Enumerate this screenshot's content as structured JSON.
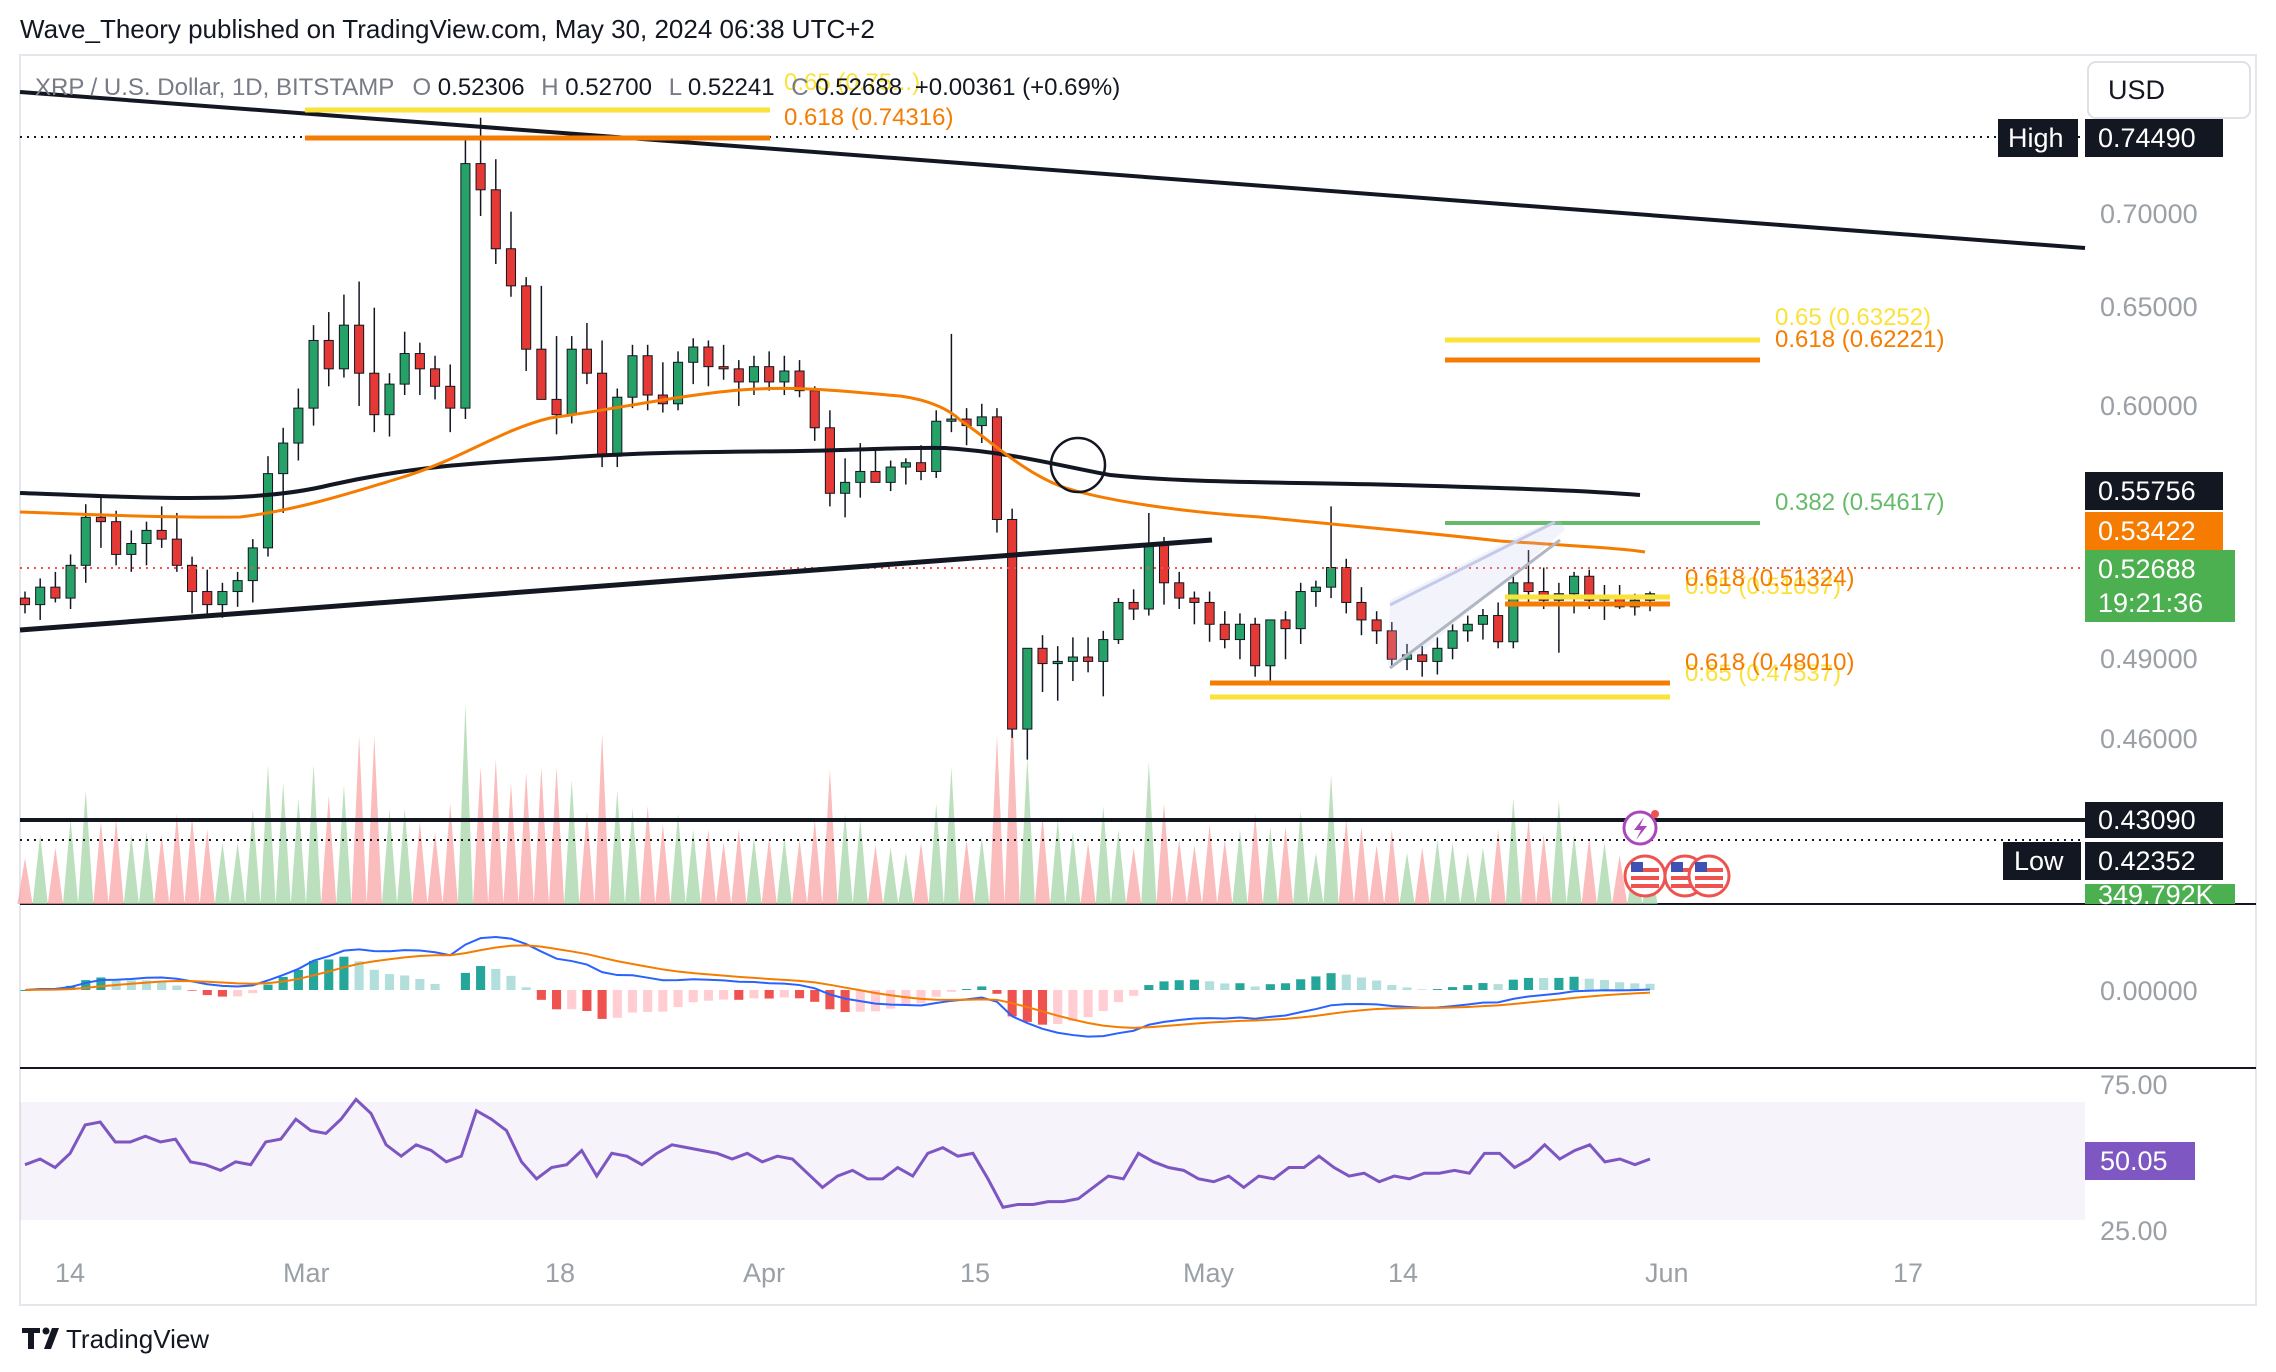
{
  "header": {
    "publisher": "Wave_Theory published on TradingView.com, May 30, 2024 06:38 UTC+2"
  },
  "currency_button": "USD",
  "legend": {
    "symbol": "XRP / U.S. Dollar, 1D, BITSTAMP",
    "o_label": "O",
    "o_value": "0.52306",
    "h_label": "H",
    "h_value": "0.52700",
    "l_label": "L",
    "l_value": "0.52241",
    "c_label": "C",
    "c_value": "0.52688",
    "change": "+0.00361 (+0.69%)"
  },
  "footer": {
    "brand": "TradingView"
  },
  "chart_data": [
    {
      "type": "candlestick",
      "panel": "price",
      "x_axis_labels": [
        "14",
        "Mar",
        "18",
        "Apr",
        "15",
        "May",
        "14",
        "Jun",
        "17"
      ],
      "y_axis_labels": [
        "0.70000",
        "0.65000",
        "0.60000",
        "0.49000",
        "0.46000"
      ],
      "price_tags": {
        "high_label": "High",
        "high_value": "0.74490",
        "ma200_value": "0.55756",
        "ma50_value": "0.53422",
        "last_value": "0.52688",
        "countdown": "19:21:36",
        "support_value": "0.43090",
        "low_label": "Low",
        "low_value": "0.42352",
        "volume_value": "349.792K"
      },
      "fib_labels": {
        "top_065": "0.65 (0.75...)",
        "top_0618": "0.618 (0.74316)",
        "r_065": "0.65 (0.63252)",
        "r_0618": "0.618 (0.62221)",
        "r_0382": "0.382 (0.54617)",
        "m_0618": "0.618 (0.51324)",
        "m_065": "0.65 (0.51037)",
        "s_0618": "0.618 (0.48010)",
        "s_065": "0.65 (0.47537)"
      },
      "candles_ohlc": [
        [
          0.525,
          0.528,
          0.518,
          0.522
        ],
        [
          0.522,
          0.534,
          0.515,
          0.53
        ],
        [
          0.53,
          0.537,
          0.523,
          0.525
        ],
        [
          0.525,
          0.545,
          0.52,
          0.54
        ],
        [
          0.54,
          0.568,
          0.532,
          0.562
        ],
        [
          0.562,
          0.572,
          0.548,
          0.56
        ],
        [
          0.56,
          0.565,
          0.54,
          0.545
        ],
        [
          0.545,
          0.556,
          0.537,
          0.55
        ],
        [
          0.55,
          0.56,
          0.54,
          0.556
        ],
        [
          0.556,
          0.567,
          0.548,
          0.552
        ],
        [
          0.552,
          0.564,
          0.537,
          0.54
        ],
        [
          0.54,
          0.544,
          0.518,
          0.528
        ],
        [
          0.528,
          0.538,
          0.517,
          0.522
        ],
        [
          0.522,
          0.532,
          0.516,
          0.528
        ],
        [
          0.528,
          0.537,
          0.521,
          0.533
        ],
        [
          0.533,
          0.552,
          0.523,
          0.548
        ],
        [
          0.548,
          0.59,
          0.544,
          0.582
        ],
        [
          0.582,
          0.603,
          0.564,
          0.596
        ],
        [
          0.596,
          0.621,
          0.588,
          0.612
        ],
        [
          0.612,
          0.65,
          0.604,
          0.643
        ],
        [
          0.643,
          0.656,
          0.622,
          0.63
        ],
        [
          0.63,
          0.664,
          0.626,
          0.65
        ],
        [
          0.65,
          0.67,
          0.613,
          0.628
        ],
        [
          0.628,
          0.658,
          0.601,
          0.609
        ],
        [
          0.609,
          0.628,
          0.599,
          0.623
        ],
        [
          0.623,
          0.647,
          0.618,
          0.637
        ],
        [
          0.637,
          0.642,
          0.618,
          0.63
        ],
        [
          0.63,
          0.636,
          0.616,
          0.622
        ],
        [
          0.622,
          0.632,
          0.601,
          0.612
        ],
        [
          0.612,
          0.736,
          0.607,
          0.724
        ],
        [
          0.724,
          0.745,
          0.7,
          0.712
        ],
        [
          0.712,
          0.726,
          0.678,
          0.685
        ],
        [
          0.685,
          0.702,
          0.663,
          0.668
        ],
        [
          0.668,
          0.672,
          0.629,
          0.639
        ],
        [
          0.639,
          0.668,
          0.623,
          0.616
        ],
        [
          0.616,
          0.645,
          0.6,
          0.609
        ],
        [
          0.609,
          0.645,
          0.605,
          0.639
        ],
        [
          0.639,
          0.651,
          0.623,
          0.628
        ],
        [
          0.628,
          0.643,
          0.585,
          0.59
        ],
        [
          0.59,
          0.621,
          0.585,
          0.617
        ],
        [
          0.617,
          0.641,
          0.612,
          0.636
        ],
        [
          0.636,
          0.641,
          0.611,
          0.618
        ],
        [
          0.618,
          0.633,
          0.61,
          0.614
        ],
        [
          0.614,
          0.638,
          0.611,
          0.633
        ],
        [
          0.633,
          0.644,
          0.623,
          0.64
        ],
        [
          0.64,
          0.643,
          0.622,
          0.631
        ],
        [
          0.631,
          0.641,
          0.625,
          0.63
        ],
        [
          0.63,
          0.634,
          0.613,
          0.624
        ],
        [
          0.624,
          0.636,
          0.618,
          0.631
        ],
        [
          0.631,
          0.638,
          0.62,
          0.624
        ],
        [
          0.624,
          0.636,
          0.618,
          0.629
        ],
        [
          0.629,
          0.634,
          0.617,
          0.62
        ],
        [
          0.62,
          0.622,
          0.597,
          0.603
        ],
        [
          0.603,
          0.611,
          0.567,
          0.573
        ],
        [
          0.573,
          0.589,
          0.562,
          0.578
        ],
        [
          0.578,
          0.596,
          0.571,
          0.583
        ],
        [
          0.583,
          0.593,
          0.578,
          0.578
        ],
        [
          0.578,
          0.588,
          0.574,
          0.585
        ],
        [
          0.585,
          0.589,
          0.577,
          0.587
        ],
        [
          0.587,
          0.595,
          0.579,
          0.583
        ],
        [
          0.583,
          0.611,
          0.58,
          0.606
        ],
        [
          0.606,
          0.646,
          0.601,
          0.607
        ],
        [
          0.607,
          0.612,
          0.595,
          0.604
        ],
        [
          0.604,
          0.614,
          0.596,
          0.608
        ],
        [
          0.608,
          0.612,
          0.555,
          0.561
        ],
        [
          0.561,
          0.566,
          0.461,
          0.465
        ],
        [
          0.465,
          0.5,
          0.451,
          0.502
        ],
        [
          0.502,
          0.508,
          0.482,
          0.495
        ],
        [
          0.495,
          0.503,
          0.478,
          0.496
        ],
        [
          0.496,
          0.507,
          0.487,
          0.498
        ],
        [
          0.498,
          0.507,
          0.491,
          0.496
        ],
        [
          0.496,
          0.51,
          0.48,
          0.506
        ],
        [
          0.506,
          0.525,
          0.504,
          0.523
        ],
        [
          0.523,
          0.529,
          0.515,
          0.52
        ],
        [
          0.52,
          0.564,
          0.517,
          0.55
        ],
        [
          0.55,
          0.553,
          0.522,
          0.532
        ],
        [
          0.532,
          0.537,
          0.52,
          0.525
        ],
        [
          0.525,
          0.528,
          0.513,
          0.523
        ],
        [
          0.523,
          0.528,
          0.505,
          0.513
        ],
        [
          0.513,
          0.519,
          0.502,
          0.506
        ],
        [
          0.506,
          0.518,
          0.497,
          0.513
        ],
        [
          0.513,
          0.516,
          0.489,
          0.494
        ],
        [
          0.494,
          0.509,
          0.487,
          0.515
        ],
        [
          0.515,
          0.519,
          0.497,
          0.511
        ],
        [
          0.511,
          0.532,
          0.504,
          0.528
        ],
        [
          0.528,
          0.533,
          0.521,
          0.53
        ],
        [
          0.53,
          0.567,
          0.525,
          0.539
        ],
        [
          0.539,
          0.543,
          0.518,
          0.523
        ],
        [
          0.523,
          0.53,
          0.508,
          0.515
        ],
        [
          0.515,
          0.519,
          0.504,
          0.51
        ],
        [
          0.51,
          0.514,
          0.493,
          0.497
        ],
        [
          0.497,
          0.504,
          0.492,
          0.499
        ],
        [
          0.499,
          0.503,
          0.489,
          0.496
        ],
        [
          0.496,
          0.507,
          0.49,
          0.502
        ],
        [
          0.502,
          0.513,
          0.497,
          0.51
        ],
        [
          0.51,
          0.517,
          0.505,
          0.513
        ],
        [
          0.513,
          0.52,
          0.506,
          0.517
        ],
        [
          0.517,
          0.523,
          0.502,
          0.505
        ],
        [
          0.505,
          0.535,
          0.502,
          0.532
        ],
        [
          0.532,
          0.547,
          0.522,
          0.528
        ],
        [
          0.528,
          0.539,
          0.52,
          0.524
        ],
        [
          0.524,
          0.532,
          0.5,
          0.527
        ],
        [
          0.527,
          0.537,
          0.518,
          0.535
        ],
        [
          0.535,
          0.538,
          0.52,
          0.524
        ],
        [
          0.524,
          0.531,
          0.515,
          0.526
        ],
        [
          0.526,
          0.531,
          0.52,
          0.521
        ],
        [
          0.521,
          0.527,
          0.517,
          0.524
        ],
        [
          0.524,
          0.528,
          0.519,
          0.527
        ]
      ]
    },
    {
      "type": "histogram",
      "panel": "macd",
      "y_axis_labels": [
        "0.00000"
      ]
    },
    {
      "type": "line",
      "panel": "rsi",
      "y_axis_labels": [
        "75.00",
        "25.00"
      ],
      "last_value": "50.05",
      "values": [
        48,
        50,
        47,
        52,
        62,
        63,
        56,
        56,
        58,
        56,
        57,
        49,
        48,
        46,
        49,
        48,
        56,
        57,
        64,
        60,
        59,
        64,
        71,
        66,
        55,
        51,
        55,
        53,
        49,
        51,
        67,
        64,
        60,
        49,
        43,
        47,
        48,
        53,
        44,
        52,
        51,
        48,
        52,
        55,
        54,
        53,
        52,
        50,
        52,
        49,
        51,
        50,
        45,
        40,
        44,
        46,
        43,
        43,
        47,
        44,
        52,
        54,
        51,
        52,
        43,
        33,
        34,
        34,
        35,
        35,
        36,
        40,
        44,
        43,
        52,
        49,
        47,
        46,
        43,
        42,
        44,
        40,
        44,
        43,
        47,
        47,
        51,
        47,
        44,
        45,
        42,
        44,
        43,
        45,
        45,
        46,
        45,
        52,
        52,
        47,
        50,
        55,
        50,
        53,
        55,
        49,
        50,
        48,
        50
      ],
      "band": [
        30,
        70
      ]
    }
  ]
}
